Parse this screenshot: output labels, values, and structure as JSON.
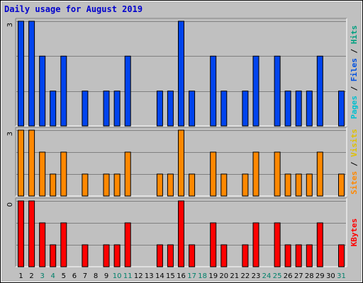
{
  "chart_data": {
    "type": "bar",
    "title": "Daily usage for August 2019",
    "title_color": "#0000cc",
    "days": [
      "1",
      "2",
      "3",
      "4",
      "5",
      "6",
      "7",
      "8",
      "9",
      "10",
      "11",
      "12",
      "13",
      "14",
      "15",
      "16",
      "17",
      "18",
      "19",
      "20",
      "21",
      "22",
      "23",
      "24",
      "25",
      "26",
      "27",
      "28",
      "29",
      "30",
      "31"
    ],
    "weekend_days": [
      "3",
      "4",
      "10",
      "11",
      "17",
      "18",
      "24",
      "25",
      "31"
    ],
    "weekday_label_color": "#000000",
    "weekend_label_color": "#00806a",
    "panels": [
      {
        "ytick": "3",
        "ymax": 3,
        "label_parts": [
          {
            "text": "Pages",
            "color": "#00c0d0"
          },
          {
            "text": " / ",
            "color": "#000000"
          },
          {
            "text": "Files",
            "color": "#0050e0"
          },
          {
            "text": " / ",
            "color": "#000000"
          },
          {
            "text": "Hits",
            "color": "#00a080"
          }
        ],
        "bar_color": "#0044ee",
        "values": [
          3,
          3,
          2,
          1,
          2,
          0,
          1,
          0,
          1,
          1,
          2,
          0,
          0,
          1,
          1,
          3,
          1,
          0,
          2,
          1,
          0,
          1,
          2,
          0,
          2,
          1,
          1,
          1,
          2,
          0,
          1
        ]
      },
      {
        "ytick": "3",
        "ymax": 3,
        "label_parts": [
          {
            "text": "Sites",
            "color": "#ff8800"
          },
          {
            "text": " / ",
            "color": "#000000"
          },
          {
            "text": "Visits",
            "color": "#e0c000"
          }
        ],
        "bar_color": "#ff8800",
        "values": [
          3,
          3,
          2,
          1,
          2,
          0,
          1,
          0,
          1,
          1,
          2,
          0,
          0,
          1,
          1,
          3,
          1,
          0,
          2,
          1,
          0,
          1,
          2,
          0,
          2,
          1,
          1,
          1,
          2,
          0,
          1
        ]
      },
      {
        "ytick": "0",
        "ymax": 3,
        "label_parts": [
          {
            "text": "KBytes",
            "color": "#ff0000"
          }
        ],
        "bar_color": "#ff0000",
        "values": [
          3,
          3,
          2,
          1,
          2,
          0,
          1,
          0,
          1,
          1,
          2,
          0,
          0,
          1,
          1,
          3,
          1,
          0,
          2,
          1,
          0,
          1,
          2,
          0,
          2,
          1,
          1,
          1,
          2,
          0,
          1
        ]
      }
    ],
    "grid": true
  }
}
